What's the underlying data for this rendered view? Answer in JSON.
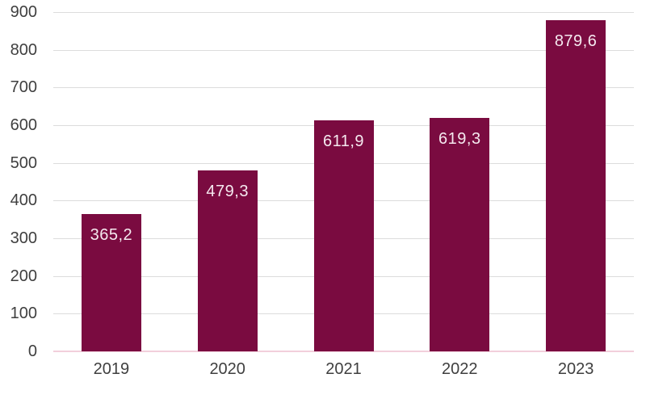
{
  "chart_data": {
    "type": "bar",
    "title": "",
    "categories": [
      "2019",
      "2020",
      "2021",
      "2022",
      "2023"
    ],
    "values": [
      365.2,
      479.3,
      611.9,
      619.3,
      879.6
    ],
    "value_labels": [
      "365,2",
      "479,3",
      "611,9",
      "619,3",
      "879,6"
    ],
    "xlabel": "",
    "ylabel": "",
    "ylim": [
      0,
      900
    ],
    "ytick_step": 100,
    "ytick_labels": [
      "0",
      "100",
      "200",
      "300",
      "400",
      "500",
      "600",
      "700",
      "800",
      "900"
    ],
    "grid": true,
    "legend": "none",
    "colors": {
      "bar": "#7A0B40",
      "bar_label_text": "#F5E9EF",
      "axis_text": "#3F3F3F",
      "gridline": "#DCDCDC",
      "baseline": "#F2CFDB",
      "background": "#FFFFFF"
    }
  }
}
